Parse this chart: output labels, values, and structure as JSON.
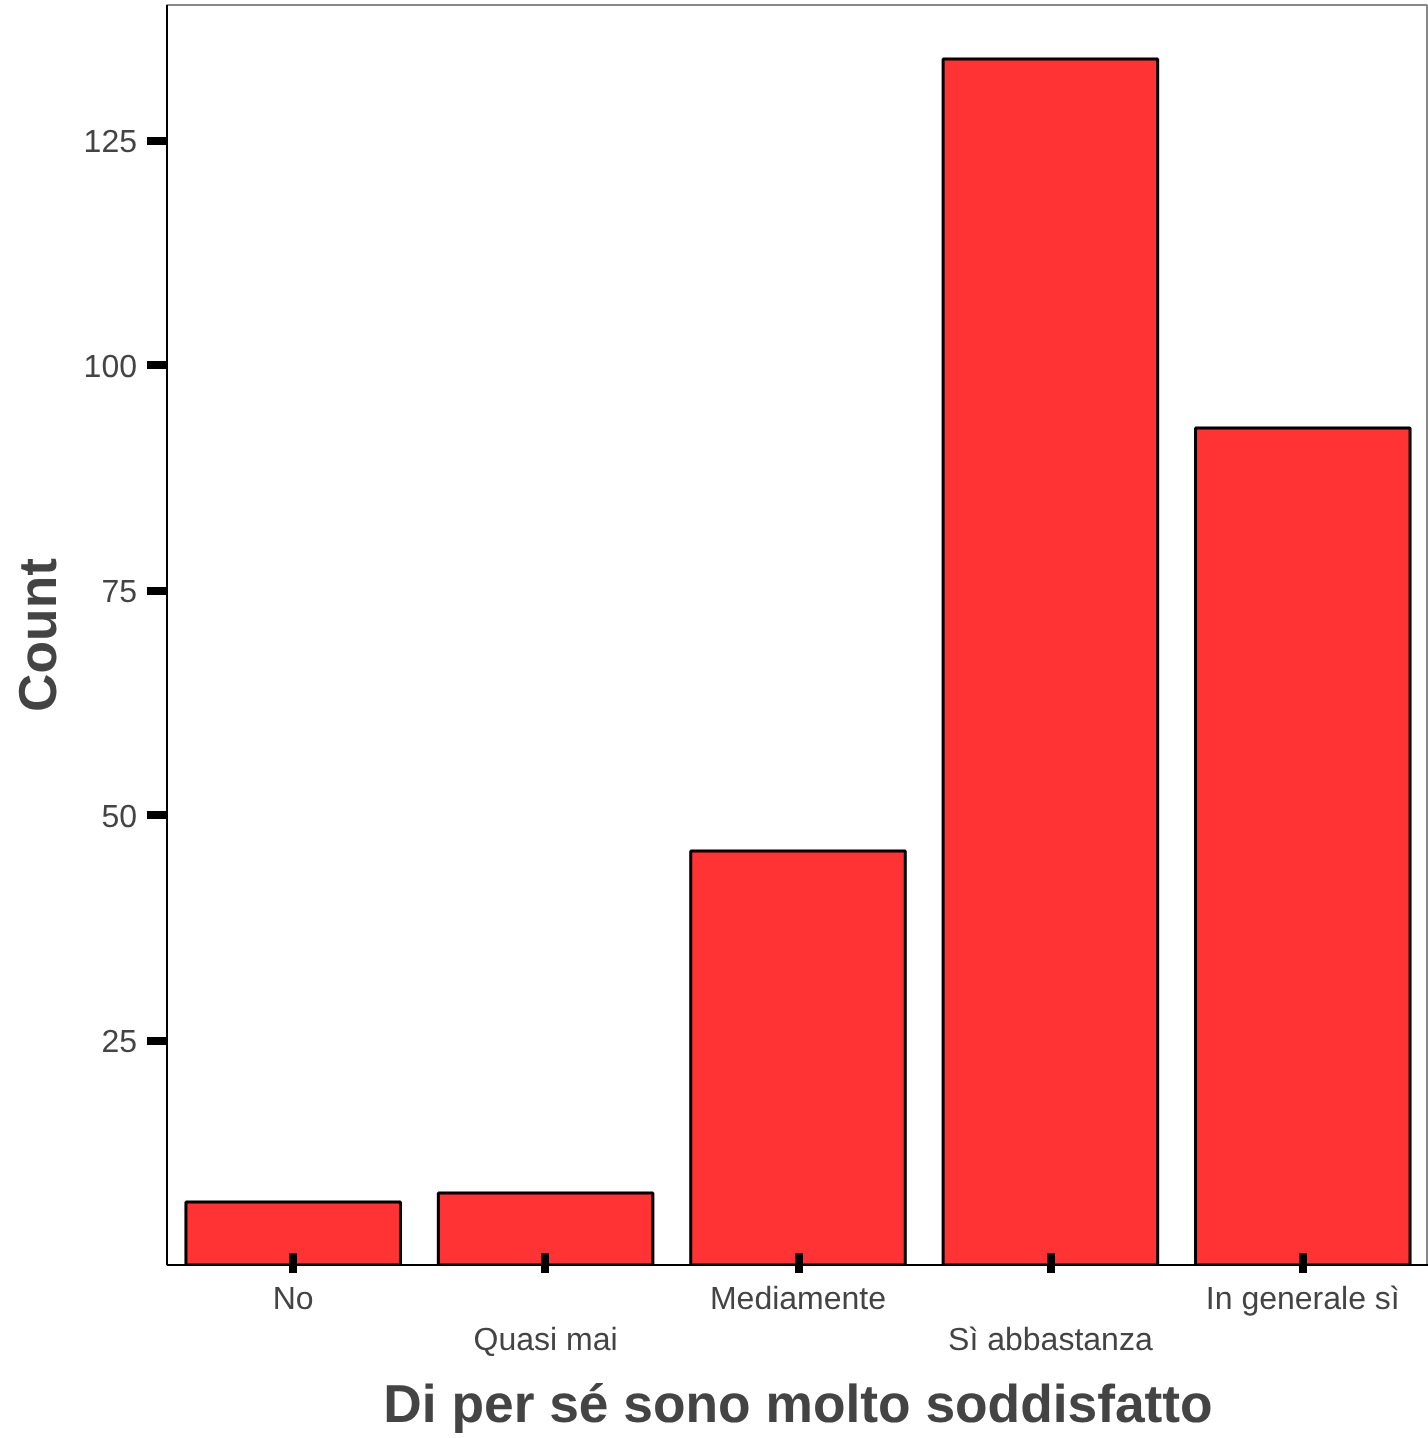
{
  "chart_data": {
    "type": "bar",
    "xlabel": "Di per sé sono molto soddisfatto",
    "ylabel": "Count",
    "categories": [
      "No",
      "Quasi mai",
      "Mediamente",
      "Sì abbastanza",
      "In generale sì"
    ],
    "values": [
      7,
      8,
      46,
      134,
      93
    ],
    "color": "#ff3333",
    "ylim": [
      0,
      140
    ],
    "yticks": [
      25,
      50,
      75,
      100,
      125
    ],
    "grid": false
  }
}
